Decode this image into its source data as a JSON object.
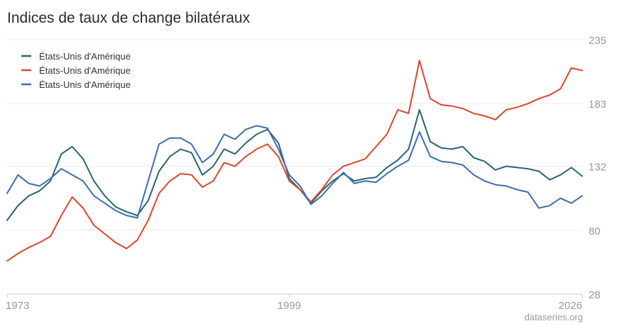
{
  "title": "Indices de taux de change bilatéraux",
  "source": "dataseries.org",
  "colors": {
    "grid": "#ebebeb",
    "axis": "#cccccc",
    "tick_text": "#9a9a9a"
  },
  "chart_data": {
    "type": "line",
    "title": "Indices de taux de change bilatéraux",
    "xlim": [
      1973,
      2026
    ],
    "ylim": [
      28,
      235
    ],
    "y_ticks": [
      28,
      80,
      132,
      183,
      235
    ],
    "x_ticks": [
      1973,
      1999,
      2026
    ],
    "grid": true,
    "legend_position": "top-left",
    "y_axis_side": "right",
    "series": [
      {
        "name": "États-Unis d'Amérique",
        "color": "#2a6570",
        "x": [
          1973,
          1974,
          1975,
          1976,
          1977,
          1978,
          1979,
          1980,
          1981,
          1982,
          1983,
          1984,
          1985,
          1986,
          1987,
          1988,
          1989,
          1990,
          1991,
          1992,
          1993,
          1994,
          1995,
          1996,
          1997,
          1998,
          1999,
          2000,
          2001,
          2002,
          2003,
          2004,
          2005,
          2006,
          2007,
          2008,
          2009,
          2010,
          2011,
          2012,
          2013,
          2014,
          2015,
          2016,
          2017,
          2018,
          2019,
          2020,
          2021,
          2022,
          2023,
          2024,
          2025,
          2026
        ],
        "y": [
          88,
          100,
          108,
          112,
          120,
          142,
          148,
          138,
          120,
          108,
          99,
          95,
          92,
          104,
          128,
          140,
          146,
          143,
          125,
          132,
          146,
          142,
          151,
          158,
          162,
          151,
          122,
          113,
          102,
          112,
          120,
          126,
          120,
          122,
          123,
          131,
          137,
          146,
          178,
          152,
          147,
          146,
          148,
          139,
          136,
          129,
          132,
          131,
          130,
          128,
          121,
          125,
          131,
          124
        ]
      },
      {
        "name": "États-Unis d'Amérique",
        "color": "#dc472e",
        "x": [
          1973,
          1974,
          1975,
          1976,
          1977,
          1978,
          1979,
          1980,
          1981,
          1982,
          1983,
          1984,
          1985,
          1986,
          1987,
          1988,
          1989,
          1990,
          1991,
          1992,
          1993,
          1994,
          1995,
          1996,
          1997,
          1998,
          1999,
          2000,
          2001,
          2002,
          2003,
          2004,
          2005,
          2006,
          2007,
          2008,
          2009,
          2010,
          2011,
          2012,
          2013,
          2014,
          2015,
          2016,
          2017,
          2018,
          2019,
          2020,
          2021,
          2022,
          2023,
          2024,
          2025,
          2026
        ],
        "y": [
          55,
          61,
          66,
          70,
          75,
          92,
          107,
          98,
          84,
          77,
          70,
          65,
          72,
          88,
          110,
          120,
          126,
          125,
          115,
          120,
          135,
          132,
          140,
          146,
          150,
          140,
          120,
          113,
          103,
          113,
          125,
          132,
          135,
          138,
          148,
          158,
          178,
          175,
          218,
          187,
          182,
          181,
          179,
          175,
          173,
          170,
          178,
          180,
          183,
          187,
          190,
          195,
          212,
          210
        ]
      },
      {
        "name": "États-Unis d'Amérique",
        "color": "#3d6ead",
        "x": [
          1973,
          1974,
          1975,
          1976,
          1977,
          1978,
          1979,
          1980,
          1981,
          1982,
          1983,
          1984,
          1985,
          1986,
          1987,
          1988,
          1989,
          1990,
          1991,
          1992,
          1993,
          1994,
          1995,
          1996,
          1997,
          1998,
          1999,
          2000,
          2001,
          2002,
          2003,
          2004,
          2005,
          2006,
          2007,
          2008,
          2009,
          2010,
          2011,
          2012,
          2013,
          2014,
          2015,
          2016,
          2017,
          2018,
          2019,
          2020,
          2021,
          2022,
          2023,
          2024,
          2025,
          2026
        ],
        "y": [
          110,
          125,
          118,
          116,
          122,
          130,
          125,
          120,
          108,
          102,
          96,
          92,
          90,
          120,
          150,
          155,
          155,
          150,
          135,
          142,
          158,
          154,
          162,
          165,
          163,
          146,
          125,
          116,
          101,
          108,
          118,
          127,
          118,
          120,
          119,
          126,
          132,
          137,
          160,
          140,
          136,
          135,
          133,
          125,
          120,
          117,
          116,
          113,
          111,
          98,
          100,
          106,
          102,
          108
        ]
      }
    ]
  }
}
